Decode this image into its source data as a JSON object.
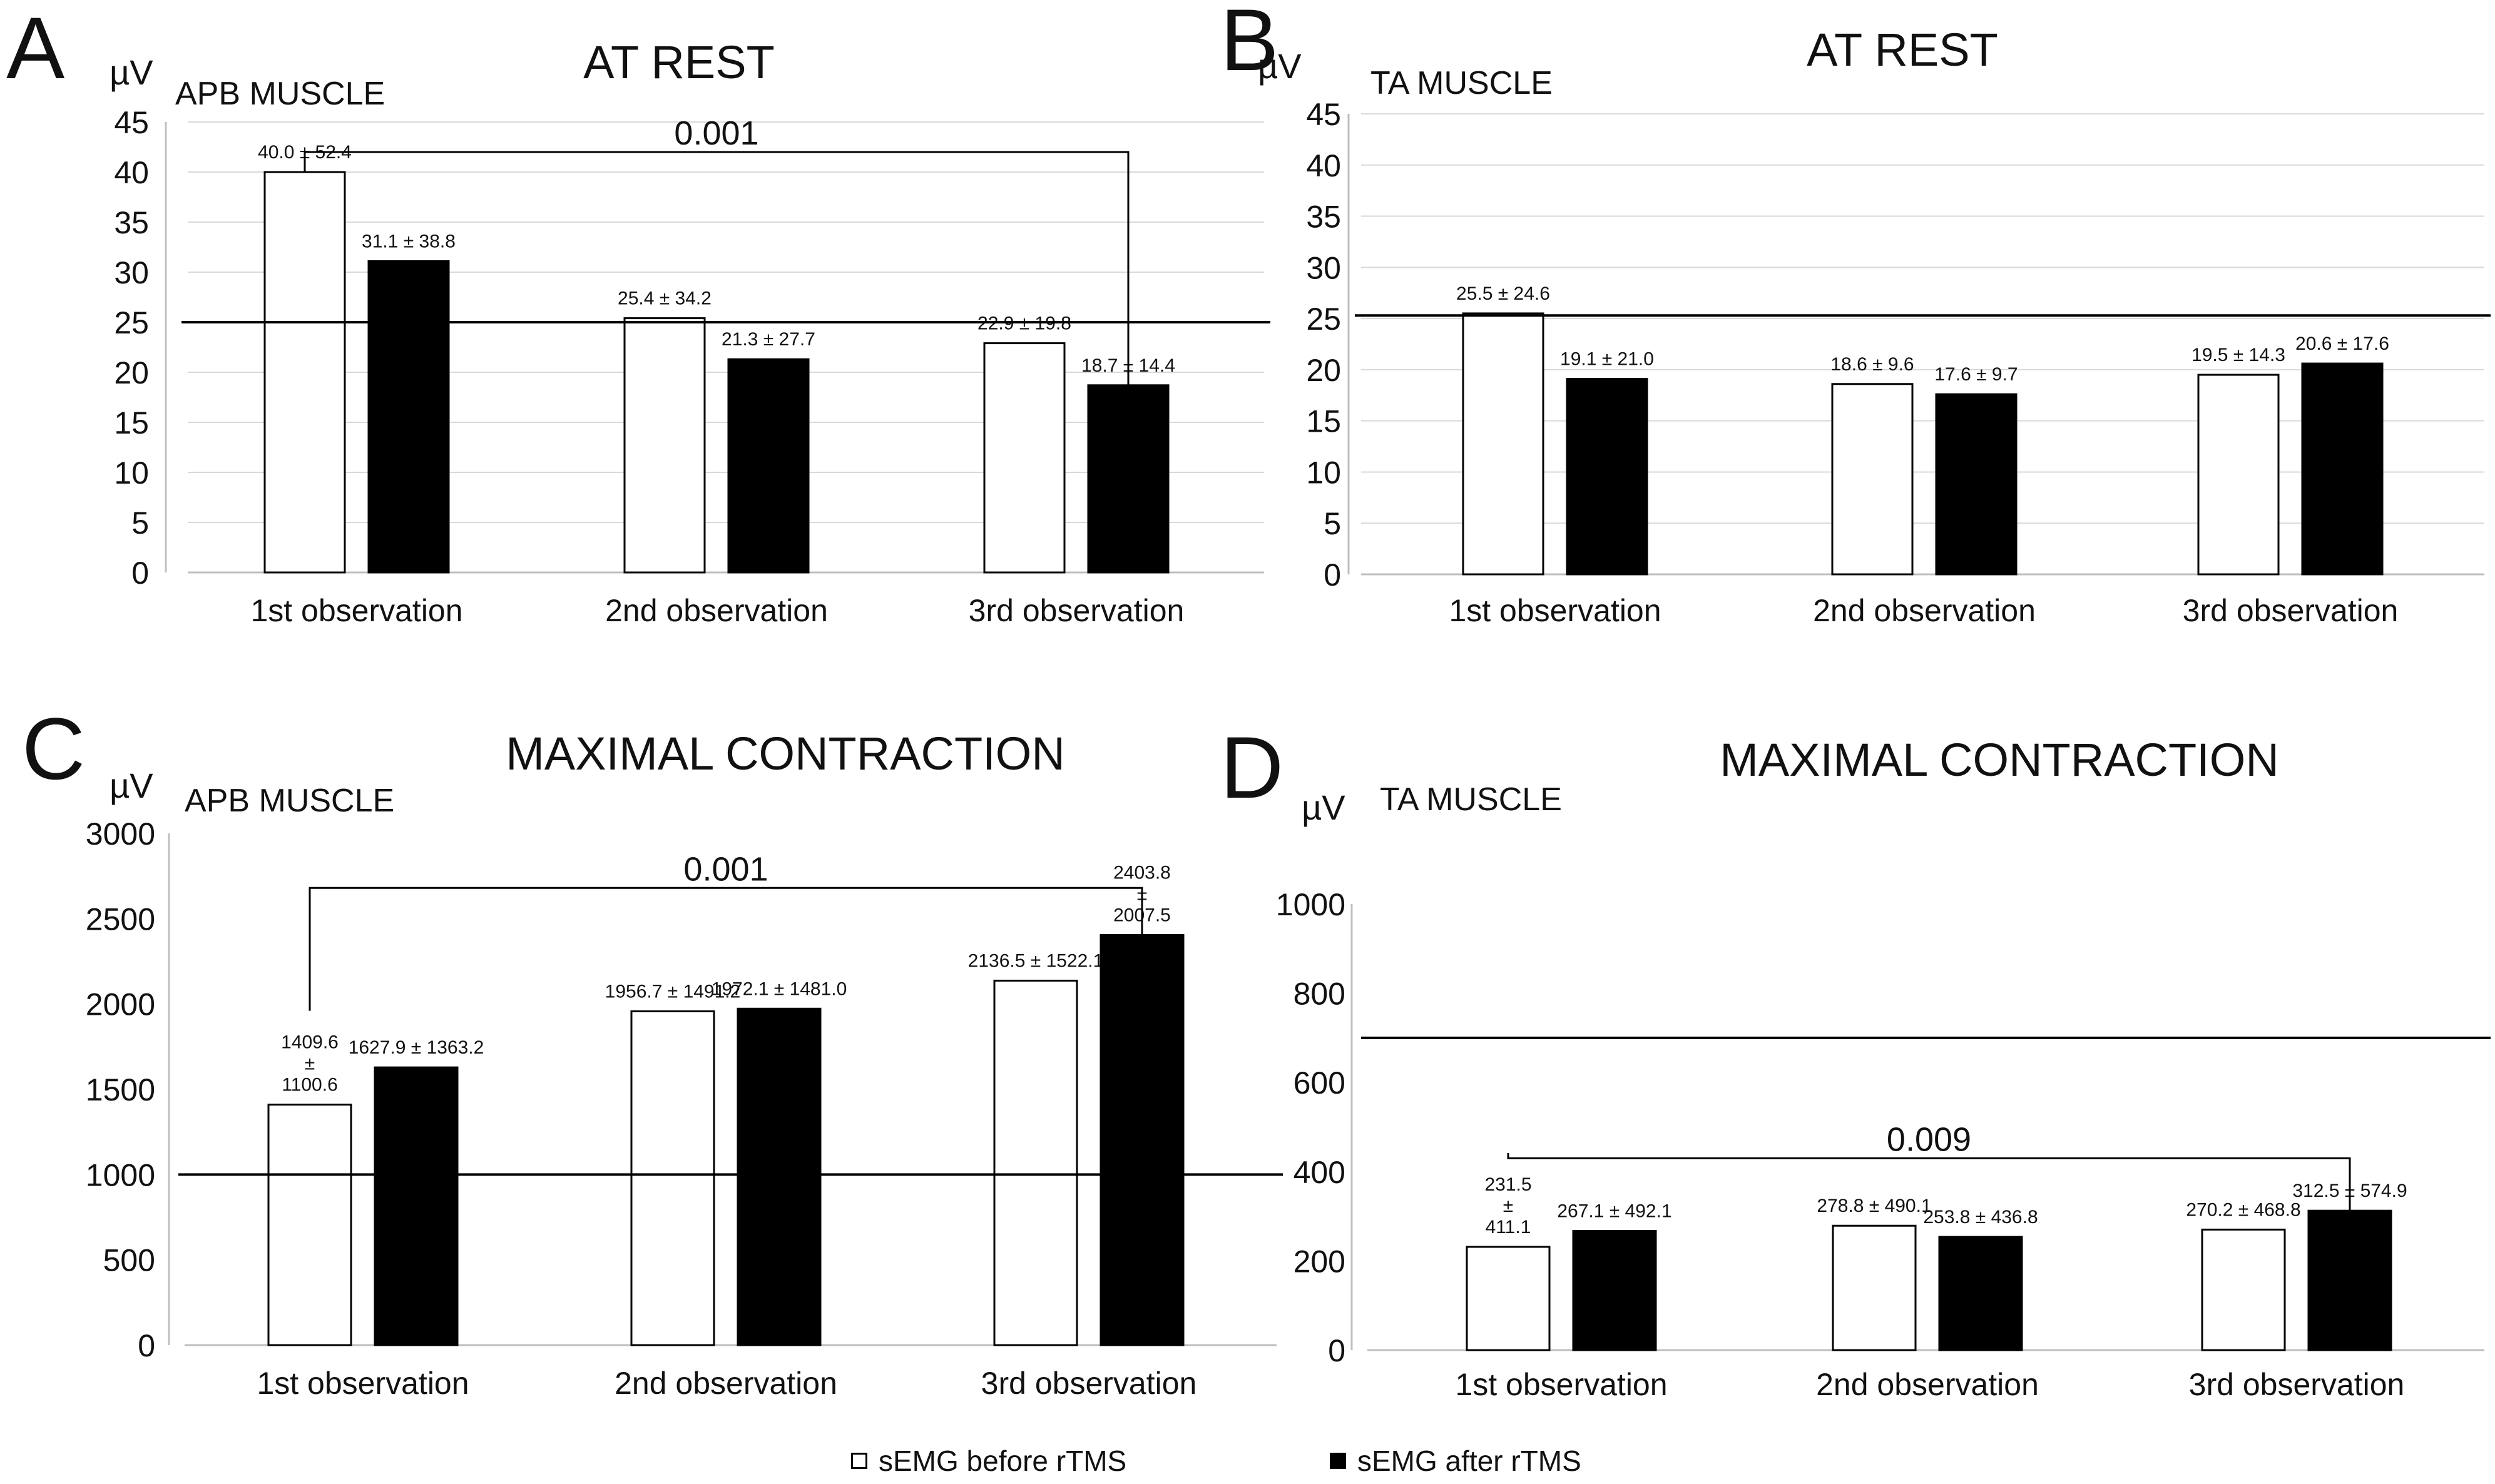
{
  "figure": {
    "legend": [
      {
        "label": "sEMG before rTMS",
        "fill": "#ffffff"
      },
      {
        "label": "sEMG after rTMS",
        "fill": "#000000"
      }
    ]
  },
  "chart_data": [
    {
      "type": "bar",
      "panel_letter": "A",
      "title": "AT REST",
      "subtitle": "APB MUSCLE",
      "ylabel": "µV",
      "categories": [
        "1st observation",
        "2nd observation",
        "3rd observation"
      ],
      "ylim": [
        0,
        45
      ],
      "yticks": [
        0,
        5,
        10,
        15,
        20,
        25,
        30,
        35,
        40,
        45
      ],
      "grid": true,
      "series": [
        {
          "name": "sEMG before rTMS",
          "color": "#ffffff",
          "values": [
            40.0,
            25.4,
            22.9
          ],
          "labels": [
            "40.0 ± 52.4",
            "25.4 ± 34.2",
            "22.9 ± 19.8"
          ]
        },
        {
          "name": "sEMG after rTMS",
          "color": "#000000",
          "values": [
            31.1,
            21.3,
            18.7
          ],
          "labels": [
            "31.1 ± 38.8",
            "21.3 ± 27.7",
            "18.7 ± 14.4"
          ]
        }
      ],
      "reference_line": 25,
      "significance": {
        "label": "0.001",
        "from": [
          0,
          0
        ],
        "to": [
          2,
          1
        ],
        "level": 42
      }
    },
    {
      "type": "bar",
      "panel_letter": "B",
      "title": "AT REST",
      "subtitle": "TA MUSCLE",
      "ylabel": "µV",
      "categories": [
        "1st observation",
        "2nd observation",
        "3rd observation"
      ],
      "ylim": [
        0,
        45
      ],
      "yticks": [
        0,
        5,
        10,
        15,
        20,
        25,
        30,
        35,
        40,
        45
      ],
      "grid": true,
      "series": [
        {
          "name": "sEMG before rTMS",
          "color": "#ffffff",
          "values": [
            25.5,
            18.6,
            19.5
          ],
          "labels": [
            "25.5 ± 24.6",
            "18.6 ± 9.6",
            "19.5 ± 14.3"
          ]
        },
        {
          "name": "sEMG after rTMS",
          "color": "#000000",
          "values": [
            19.1,
            17.6,
            20.6
          ],
          "labels": [
            "19.1 ± 21.0",
            "17.6 ± 9.7",
            "20.6 ± 17.6"
          ]
        }
      ],
      "reference_line": 25.3
    },
    {
      "type": "bar",
      "panel_letter": "C",
      "title": "MAXIMAL CONTRACTION",
      "subtitle": "APB MUSCLE",
      "ylabel": "µV",
      "categories": [
        "1st observation",
        "2nd observation",
        "3rd observation"
      ],
      "ylim": [
        0,
        3000
      ],
      "yticks": [
        0,
        500,
        1000,
        1500,
        2000,
        2500,
        3000
      ],
      "grid": false,
      "series": [
        {
          "name": "sEMG before rTMS",
          "color": "#ffffff",
          "values": [
            1409.6,
            1956.7,
            2136.5
          ],
          "labels": [
            "1409.6\n±\n1100.6",
            "1956.7 ± 1491.2",
            "2136.5 ± 1522.1"
          ]
        },
        {
          "name": "sEMG after rTMS",
          "color": "#000000",
          "values": [
            1627.9,
            1972.1,
            2403.8
          ],
          "labels": [
            "1627.9 ± 1363.2",
            "1972.1 ± 1481.0",
            "2403.8\n±\n2007.5"
          ]
        }
      ],
      "reference_line": 1000,
      "significance": {
        "label": "0.001",
        "from": [
          0,
          0
        ],
        "to": [
          2,
          1
        ],
        "level": 2680
      }
    },
    {
      "type": "bar",
      "panel_letter": "D",
      "title": "MAXIMAL CONTRACTION",
      "subtitle": "TA MUSCLE",
      "ylabel": "µV",
      "categories": [
        "1st observation",
        "2nd observation",
        "3rd observation"
      ],
      "ylim": [
        0,
        1000
      ],
      "yticks": [
        0,
        200,
        400,
        600,
        800,
        1000
      ],
      "grid": false,
      "series": [
        {
          "name": "sEMG before rTMS",
          "color": "#ffffff",
          "values": [
            231.5,
            278.8,
            270.2
          ],
          "labels": [
            "231.5\n±\n411.1",
            "278.8 ±  490.1",
            "270.2 ±  468.8"
          ]
        },
        {
          "name": "sEMG after rTMS",
          "color": "#000000",
          "values": [
            267.1,
            253.8,
            312.5
          ],
          "labels": [
            "267.1 ±  492.1",
            "253.8 ±  436.8",
            "312.5 ±  574.9"
          ]
        }
      ],
      "reference_line": 700,
      "significance": {
        "label": "0.009",
        "from": [
          0,
          0
        ],
        "to": [
          2,
          1
        ],
        "level": 430
      }
    }
  ]
}
